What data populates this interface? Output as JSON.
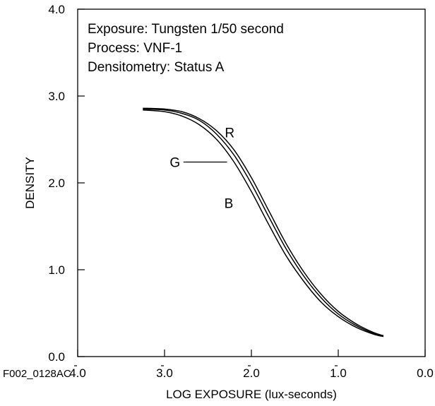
{
  "figure_id": "F002_0128AC",
  "info": {
    "exposure": "Exposure:  Tungsten 1/50 second",
    "process": "Process:  VNF-1",
    "densitometry": "Densitometry:  Status A"
  },
  "colors": {
    "line": "#000000",
    "background": "#ffffff"
  },
  "chart_data": {
    "type": "line",
    "title": "",
    "xlabel": "LOG EXPOSURE (lux-seconds)",
    "ylabel": "DENSITY",
    "xlim": [
      -4.0,
      0.0
    ],
    "ylim": [
      0.0,
      4.0
    ],
    "x_ticks": [
      -4.0,
      -3.0,
      -2.0,
      -1.0,
      0.0
    ],
    "x_tick_labels": [
      "4.0",
      "3.0",
      "2.0",
      "1.0",
      "0.0"
    ],
    "x_tick_bars": [
      true,
      true,
      true,
      true,
      false
    ],
    "y_ticks": [
      0.0,
      1.0,
      2.0,
      3.0,
      4.0
    ],
    "y_tick_labels": [
      "0.0",
      "1.0",
      "2.0",
      "3.0",
      "4.0"
    ],
    "grid": false,
    "series": [
      {
        "name": "R",
        "points": [
          [
            -3.25,
            2.86
          ],
          [
            -3.0,
            2.85
          ],
          [
            -2.8,
            2.82
          ],
          [
            -2.6,
            2.74
          ],
          [
            -2.4,
            2.6
          ],
          [
            -2.2,
            2.38
          ],
          [
            -2.0,
            2.06
          ],
          [
            -1.8,
            1.68
          ],
          [
            -1.6,
            1.3
          ],
          [
            -1.4,
            0.98
          ],
          [
            -1.2,
            0.72
          ],
          [
            -1.0,
            0.52
          ],
          [
            -0.8,
            0.38
          ],
          [
            -0.6,
            0.28
          ],
          [
            -0.48,
            0.24
          ]
        ]
      },
      {
        "name": "G",
        "points": [
          [
            -3.25,
            2.85
          ],
          [
            -3.0,
            2.84
          ],
          [
            -2.8,
            2.8
          ],
          [
            -2.6,
            2.72
          ],
          [
            -2.4,
            2.56
          ],
          [
            -2.2,
            2.32
          ],
          [
            -2.0,
            1.99
          ],
          [
            -1.8,
            1.61
          ],
          [
            -1.6,
            1.24
          ],
          [
            -1.4,
            0.93
          ],
          [
            -1.2,
            0.68
          ],
          [
            -1.0,
            0.49
          ],
          [
            -0.8,
            0.36
          ],
          [
            -0.6,
            0.27
          ],
          [
            -0.48,
            0.24
          ]
        ]
      },
      {
        "name": "B",
        "points": [
          [
            -3.25,
            2.84
          ],
          [
            -3.0,
            2.82
          ],
          [
            -2.8,
            2.77
          ],
          [
            -2.6,
            2.67
          ],
          [
            -2.4,
            2.5
          ],
          [
            -2.2,
            2.24
          ],
          [
            -2.0,
            1.9
          ],
          [
            -1.8,
            1.52
          ],
          [
            -1.6,
            1.16
          ],
          [
            -1.4,
            0.87
          ],
          [
            -1.2,
            0.63
          ],
          [
            -1.0,
            0.46
          ],
          [
            -0.8,
            0.34
          ],
          [
            -0.6,
            0.26
          ],
          [
            -0.48,
            0.23
          ]
        ]
      }
    ],
    "series_labels": [
      {
        "name": "R",
        "x": -2.25,
        "y": 2.58
      },
      {
        "name": "G",
        "x": -2.88,
        "y": 2.24,
        "leader_to": [
          -2.28,
          2.24
        ]
      },
      {
        "name": "B",
        "x": -2.26,
        "y": 1.77
      }
    ]
  }
}
